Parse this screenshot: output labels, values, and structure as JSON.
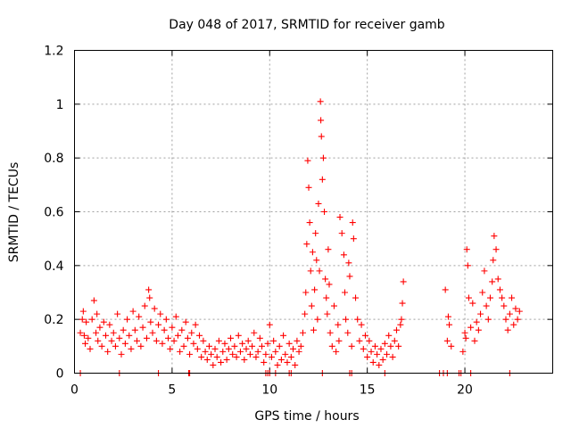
{
  "chart_data": {
    "type": "scatter",
    "title": "Day 048 of 2017, SRMTID for receiver gamb",
    "xlabel": "GPS time / hours",
    "ylabel": "SRMTID / TECUs",
    "xlim": [
      0,
      24.5
    ],
    "ylim": [
      0,
      1.2
    ],
    "x_ticks": [
      0,
      5,
      10,
      15,
      20
    ],
    "x_tick_labels": [
      "0",
      "5",
      "10",
      "15",
      "20"
    ],
    "y_ticks": [
      0,
      0.2,
      0.4,
      0.6,
      0.8,
      1.0,
      1.2
    ],
    "y_tick_labels": [
      "0",
      "0.2",
      "0.4",
      "0.6",
      "0.8",
      "1",
      "1.2"
    ],
    "grid": true,
    "marker": "plus",
    "series": [
      {
        "name": "SRMTID",
        "color": "#ff0000",
        "x": [
          0.3,
          0.4,
          0.45,
          0.5,
          0.55,
          0.6,
          0.7,
          0.8,
          0.9,
          1.0,
          1.1,
          1.15,
          1.2,
          1.3,
          1.4,
          1.5,
          1.6,
          1.7,
          1.8,
          1.9,
          2.0,
          2.1,
          2.2,
          2.3,
          2.4,
          2.5,
          2.6,
          2.7,
          2.8,
          2.9,
          3.0,
          3.1,
          3.2,
          3.3,
          3.4,
          3.5,
          3.6,
          3.7,
          3.8,
          3.85,
          3.9,
          4.0,
          4.1,
          4.2,
          4.3,
          4.4,
          4.5,
          4.6,
          4.7,
          4.8,
          4.9,
          5.0,
          5.1,
          5.2,
          5.3,
          5.4,
          5.5,
          5.6,
          5.7,
          5.8,
          5.9,
          6.0,
          6.1,
          6.2,
          6.3,
          6.4,
          6.5,
          6.6,
          6.7,
          6.8,
          6.9,
          7.0,
          7.1,
          7.2,
          7.3,
          7.4,
          7.5,
          7.6,
          7.7,
          7.8,
          7.9,
          8.0,
          8.1,
          8.2,
          8.3,
          8.4,
          8.5,
          8.6,
          8.7,
          8.8,
          8.9,
          9.0,
          9.1,
          9.2,
          9.3,
          9.4,
          9.5,
          9.6,
          9.7,
          9.8,
          9.9,
          10.0,
          10.1,
          10.2,
          10.3,
          10.4,
          10.5,
          10.6,
          10.7,
          10.8,
          10.9,
          11.0,
          11.1,
          11.2,
          11.3,
          11.4,
          11.5,
          11.6,
          11.7,
          11.8,
          11.85,
          11.9,
          11.95,
          12.0,
          12.05,
          12.1,
          12.15,
          12.2,
          12.25,
          12.3,
          12.35,
          12.4,
          12.45,
          12.5,
          12.55,
          12.6,
          12.62,
          12.65,
          12.7,
          12.75,
          12.8,
          12.85,
          12.9,
          12.95,
          13.0,
          13.05,
          13.1,
          13.2,
          13.3,
          13.4,
          13.5,
          13.55,
          13.6,
          13.7,
          13.8,
          13.85,
          13.9,
          14.0,
          14.05,
          14.1,
          14.2,
          14.25,
          14.3,
          14.4,
          14.5,
          14.6,
          14.7,
          14.8,
          14.9,
          15.0,
          15.1,
          15.2,
          15.3,
          15.4,
          15.5,
          15.6,
          15.7,
          15.8,
          15.9,
          16.0,
          16.1,
          16.2,
          16.3,
          16.4,
          16.5,
          16.6,
          16.7,
          16.75,
          16.8,
          16.85,
          19.0,
          19.1,
          19.15,
          19.2,
          19.3,
          19.9,
          20.0,
          20.05,
          20.1,
          20.15,
          20.2,
          20.3,
          20.4,
          20.5,
          20.6,
          20.7,
          20.8,
          20.9,
          21.0,
          21.1,
          21.2,
          21.3,
          21.4,
          21.45,
          21.5,
          21.6,
          21.7,
          21.8,
          21.9,
          22.0,
          22.1,
          22.2,
          22.3,
          22.4,
          22.5,
          22.6,
          22.7,
          22.8
        ],
        "y": [
          0.15,
          0.2,
          0.23,
          0.14,
          0.11,
          0.19,
          0.13,
          0.09,
          0.2,
          0.27,
          0.15,
          0.22,
          0.12,
          0.17,
          0.1,
          0.19,
          0.14,
          0.08,
          0.18,
          0.12,
          0.15,
          0.1,
          0.22,
          0.13,
          0.07,
          0.16,
          0.11,
          0.2,
          0.14,
          0.09,
          0.23,
          0.16,
          0.12,
          0.21,
          0.1,
          0.17,
          0.25,
          0.13,
          0.31,
          0.28,
          0.19,
          0.15,
          0.24,
          0.12,
          0.18,
          0.22,
          0.11,
          0.16,
          0.2,
          0.13,
          0.09,
          0.17,
          0.12,
          0.21,
          0.14,
          0.08,
          0.16,
          0.1,
          0.19,
          0.13,
          0.07,
          0.15,
          0.11,
          0.18,
          0.09,
          0.14,
          0.06,
          0.12,
          0.08,
          0.05,
          0.1,
          0.07,
          0.03,
          0.09,
          0.06,
          0.12,
          0.04,
          0.08,
          0.11,
          0.05,
          0.09,
          0.13,
          0.07,
          0.1,
          0.06,
          0.14,
          0.08,
          0.11,
          0.05,
          0.09,
          0.12,
          0.07,
          0.1,
          0.15,
          0.06,
          0.08,
          0.13,
          0.1,
          0.04,
          0.07,
          0.11,
          0.18,
          0.06,
          0.12,
          0.08,
          0.03,
          0.1,
          0.05,
          0.14,
          0.07,
          0.04,
          0.11,
          0.06,
          0.09,
          0.03,
          0.12,
          0.08,
          0.1,
          0.15,
          0.22,
          0.3,
          0.48,
          0.79,
          0.69,
          0.56,
          0.38,
          0.25,
          0.45,
          0.16,
          0.31,
          0.52,
          0.42,
          0.2,
          0.63,
          0.38,
          1.01,
          0.94,
          0.88,
          0.72,
          0.8,
          0.6,
          0.35,
          0.28,
          0.22,
          0.46,
          0.33,
          0.15,
          0.1,
          0.25,
          0.08,
          0.18,
          0.12,
          0.58,
          0.52,
          0.44,
          0.3,
          0.2,
          0.15,
          0.41,
          0.36,
          0.1,
          0.56,
          0.5,
          0.28,
          0.2,
          0.12,
          0.18,
          0.09,
          0.14,
          0.06,
          0.12,
          0.08,
          0.04,
          0.1,
          0.07,
          0.03,
          0.09,
          0.05,
          0.11,
          0.07,
          0.14,
          0.1,
          0.06,
          0.12,
          0.16,
          0.1,
          0.18,
          0.2,
          0.26,
          0.34,
          0.31,
          0.12,
          0.21,
          0.18,
          0.1,
          0.08,
          0.15,
          0.13,
          0.46,
          0.4,
          0.28,
          0.17,
          0.26,
          0.12,
          0.19,
          0.16,
          0.22,
          0.3,
          0.38,
          0.25,
          0.2,
          0.28,
          0.34,
          0.42,
          0.51,
          0.46,
          0.35,
          0.31,
          0.28,
          0.25,
          0.2,
          0.16,
          0.22,
          0.28,
          0.18,
          0.24,
          0.2,
          0.23
        ]
      },
      {
        "name": "zero markers",
        "color": "#ff0000",
        "x": [
          0.3,
          2.3,
          4.3,
          5.85,
          5.9,
          9.8,
          9.9,
          10.0,
          10.3,
          11.0,
          11.1,
          12.7,
          14.1,
          14.2,
          15.9,
          18.7,
          18.9,
          19.1,
          19.7,
          19.8,
          20.3,
          22.3
        ],
        "y": [
          0,
          0,
          0,
          0,
          0,
          0,
          0,
          0,
          0,
          0,
          0,
          0,
          0,
          0,
          0,
          0,
          0,
          0,
          0,
          0,
          0,
          0
        ]
      }
    ]
  }
}
